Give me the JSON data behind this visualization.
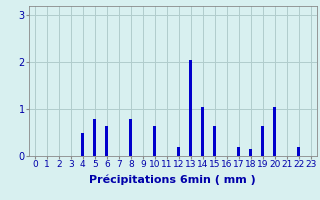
{
  "hours": [
    0,
    1,
    2,
    3,
    4,
    5,
    6,
    7,
    8,
    9,
    10,
    11,
    12,
    13,
    14,
    15,
    16,
    17,
    18,
    19,
    20,
    21,
    22,
    23
  ],
  "values": [
    0,
    0,
    0,
    0,
    0.5,
    0.8,
    0.65,
    0,
    0.8,
    0,
    0.65,
    0,
    0.2,
    2.05,
    1.05,
    0.65,
    0.0,
    0.2,
    0.15,
    0.65,
    1.05,
    0.0,
    0.2,
    0.0
  ],
  "bar_color": "#0000cc",
  "bg_color": "#d8f0f0",
  "grid_color": "#b0cccc",
  "xlabel": "Précipitations 6min ( mm )",
  "ylim": [
    0,
    3.2
  ],
  "yticks": [
    0,
    1,
    2,
    3
  ],
  "xlabel_color": "#0000aa",
  "tick_color": "#0000aa",
  "xlabel_fontsize": 8,
  "tick_fontsize": 6.5,
  "bar_width": 0.25
}
